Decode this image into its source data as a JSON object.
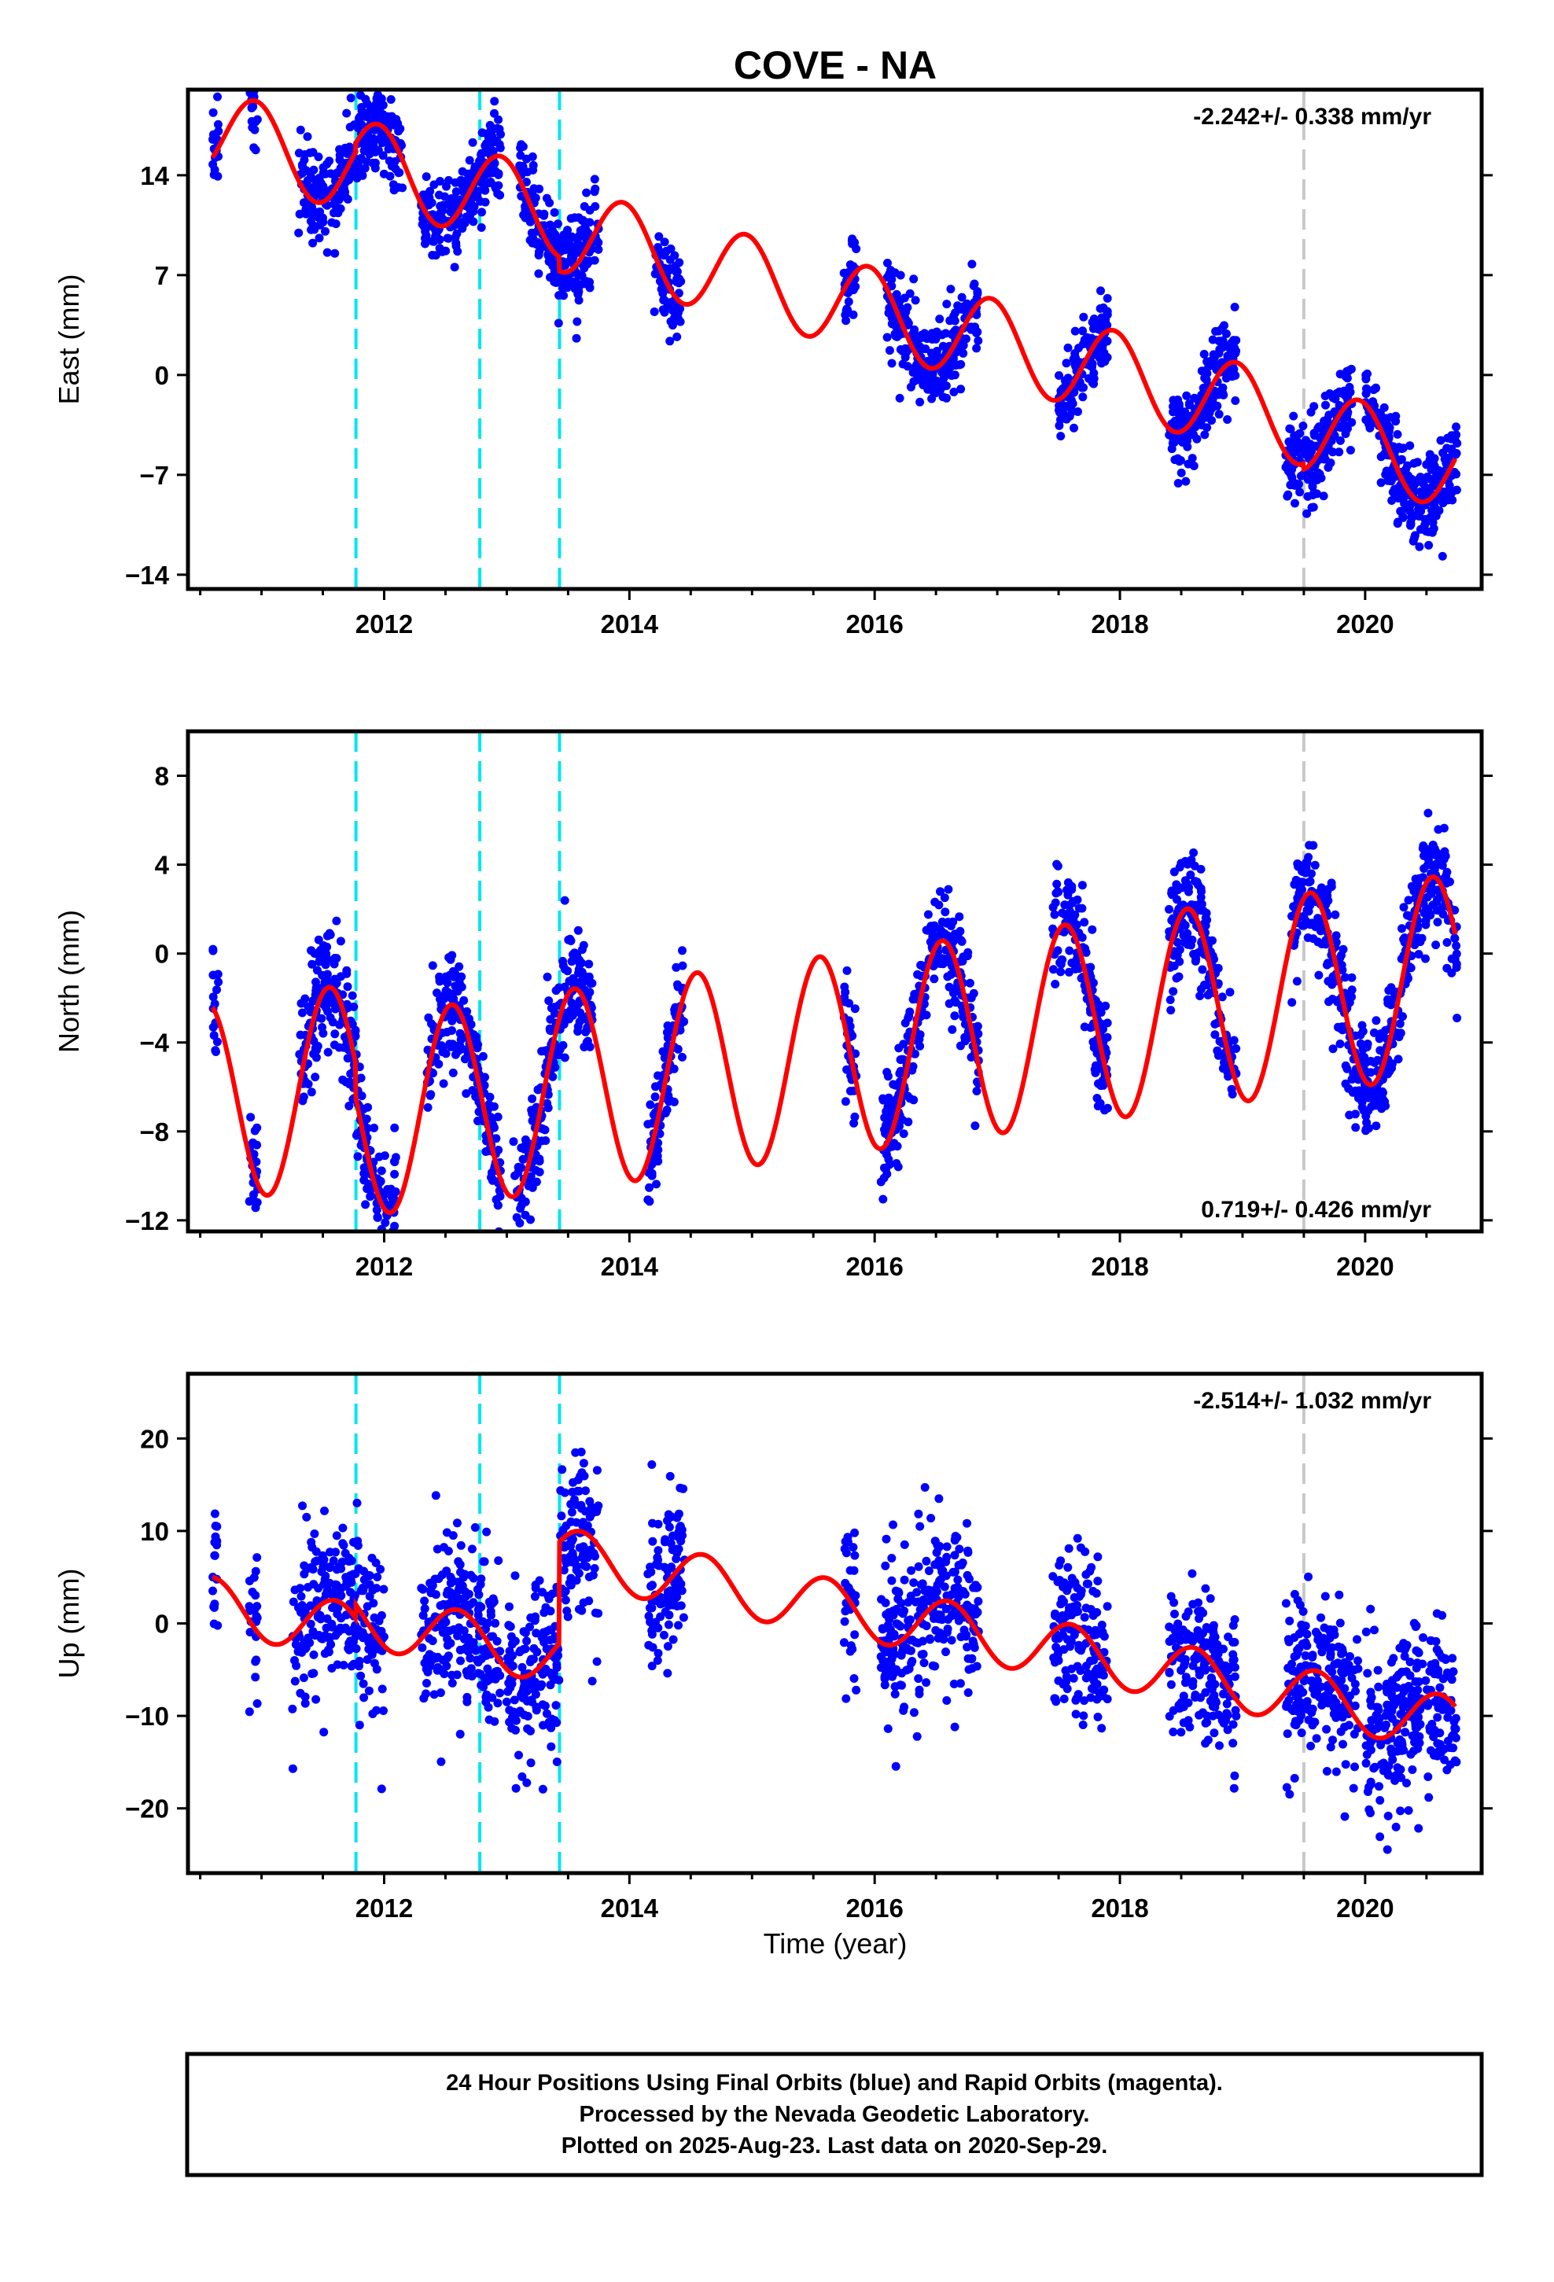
{
  "colors": {
    "final_orbits": "#0000ff",
    "model": "#ff0000",
    "equipment_change": "#00e5ee",
    "other_offset": "#c8c8c8"
  },
  "chart_data": {
    "type": "scatter",
    "title": "COVE - NA",
    "xlabel": "Time (year)",
    "x_ticks": [
      2012,
      2014,
      2016,
      2018,
      2020
    ],
    "xlim": [
      2010.4,
      2020.95
    ],
    "event_lines": {
      "cyan": [
        2011.77,
        2012.78,
        2013.43
      ],
      "gray": [
        2019.5
      ]
    },
    "panels": [
      {
        "component": "east",
        "ylabel": "East (mm)",
        "ylim": [
          -15,
          20
        ],
        "y_ticks": [
          -14,
          -7,
          0,
          7,
          14
        ],
        "rate": "-2.242+/- 0.338 mm/yr",
        "rate_position": "top-right",
        "rate_mm_yr": -2.242,
        "intercept_at_2010.6": 17.0,
        "seasonal_amplitude": 3.0,
        "seasonal_phase_year": 0.95,
        "noise_sd": 1.5,
        "offsets": [
          {
            "year": 2011.77,
            "step": 0.6
          },
          {
            "year": 2013.43,
            "step": -1.0
          },
          {
            "year": 2019.5,
            "step": -0.4
          }
        ],
        "data_segments": [
          [
            2010.6,
            2010.65
          ],
          [
            2010.9,
            2010.97
          ],
          [
            2011.3,
            2012.15
          ],
          [
            2012.3,
            2012.95
          ],
          [
            2013.1,
            2013.75
          ],
          [
            2014.2,
            2014.42
          ],
          [
            2015.75,
            2015.85
          ],
          [
            2016.1,
            2016.85
          ],
          [
            2017.5,
            2017.9
          ],
          [
            2018.4,
            2018.95
          ],
          [
            2019.35,
            2019.9
          ],
          [
            2020.0,
            2020.75
          ]
        ]
      },
      {
        "component": "north",
        "ylabel": "North (mm)",
        "ylim": [
          -12.5,
          10
        ],
        "y_ticks": [
          -12,
          -8,
          -4,
          0,
          4,
          8
        ],
        "rate": "0.719+/- 0.426 mm/yr",
        "rate_position": "bottom-right",
        "rate_mm_yr": 0.719,
        "intercept_at_2010.6": -6.7,
        "seasonal_amplitude": 4.5,
        "seasonal_phase_year": 0.55,
        "noise_sd": 1.3,
        "offsets": [
          {
            "year": 2011.77,
            "step": -1.5
          }
        ],
        "data_segments": [
          [
            2010.6,
            2010.65
          ],
          [
            2010.9,
            2010.97
          ],
          [
            2011.3,
            2012.1
          ],
          [
            2012.35,
            2012.95
          ],
          [
            2013.05,
            2013.7
          ],
          [
            2014.15,
            2014.45
          ],
          [
            2015.75,
            2015.85
          ],
          [
            2016.05,
            2016.85
          ],
          [
            2017.45,
            2017.9
          ],
          [
            2018.4,
            2018.95
          ],
          [
            2019.4,
            2019.95
          ],
          [
            2019.95,
            2020.75
          ]
        ]
      },
      {
        "component": "up",
        "ylabel": "Up (mm)",
        "ylim": [
          -27,
          27
        ],
        "y_ticks": [
          -20,
          -10,
          0,
          10,
          20
        ],
        "rate": "-2.514+/- 1.032 mm/yr",
        "rate_position": "top-right",
        "rate_mm_yr": -2.514,
        "intercept_at_2010.6": 2.0,
        "seasonal_amplitude": 3.0,
        "seasonal_phase_year": 0.6,
        "noise_sd": 4.5,
        "offsets": [
          {
            "year": 2013.43,
            "step": 11.0
          },
          {
            "year": 2011.77,
            "step": 1.5
          }
        ],
        "data_segments": [
          [
            2010.6,
            2010.65
          ],
          [
            2010.9,
            2010.97
          ],
          [
            2011.25,
            2012.0
          ],
          [
            2012.3,
            2012.95
          ],
          [
            2013.0,
            2013.75
          ],
          [
            2014.15,
            2014.45
          ],
          [
            2015.75,
            2015.85
          ],
          [
            2016.05,
            2016.85
          ],
          [
            2017.45,
            2017.9
          ],
          [
            2018.4,
            2018.95
          ],
          [
            2019.35,
            2019.95
          ],
          [
            2020.0,
            2020.75
          ]
        ]
      }
    ]
  },
  "footer": {
    "line1": "24 Hour Positions Using Final Orbits (blue) and Rapid Orbits (magenta).",
    "line2": "Processed by the Nevada Geodetic Laboratory.",
    "line3": "Plotted on 2025-Aug-23. Last data on 2020-Sep-29."
  }
}
